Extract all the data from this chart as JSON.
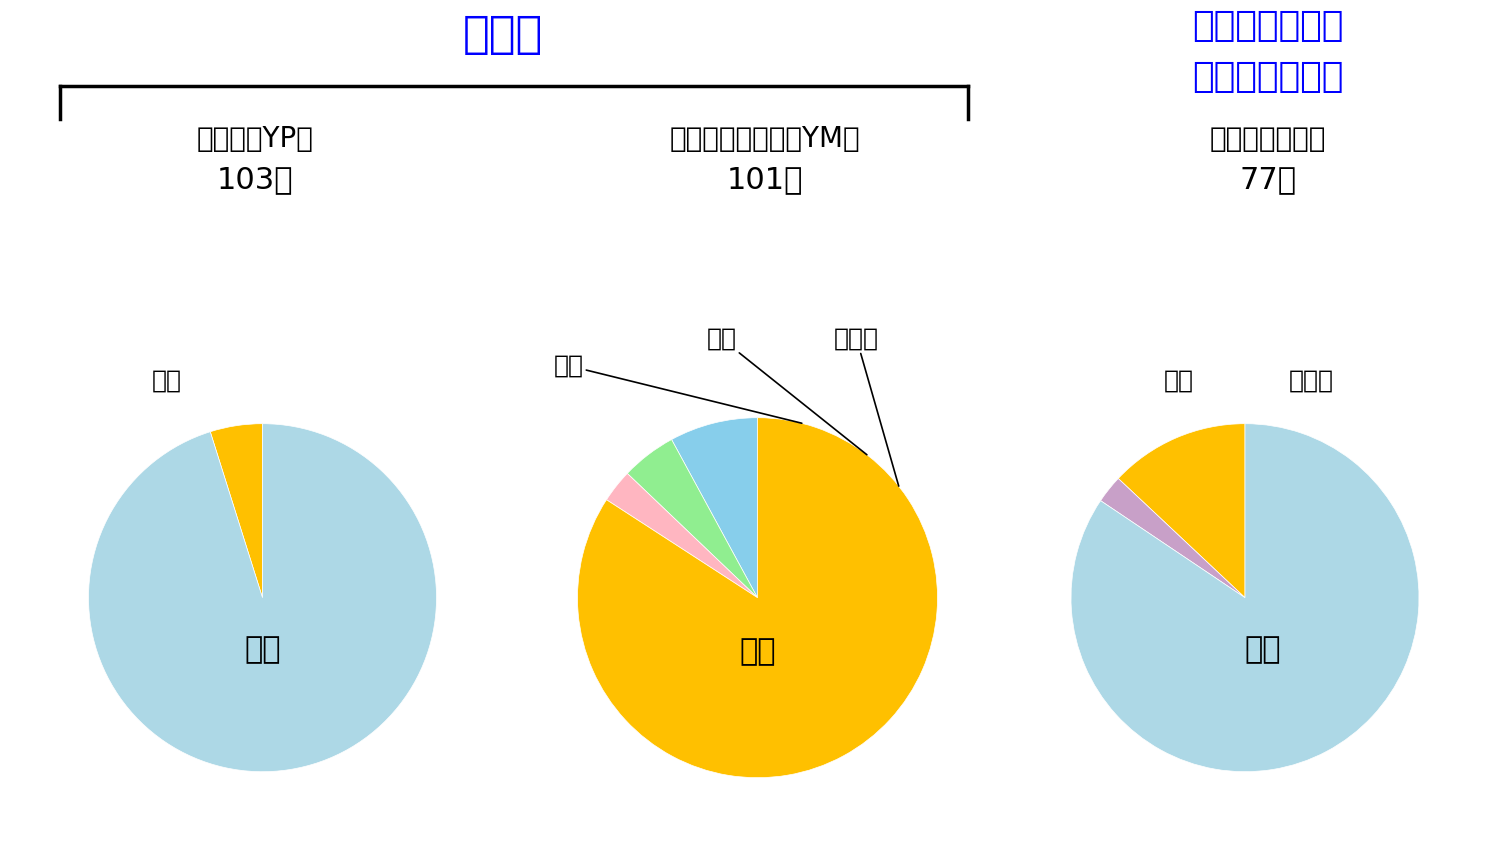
{
  "title_yakugakubu": "薬学部",
  "title_daigakuin_line1": "大学院修士課程",
  "title_daigakuin_line2": "（薬学研究科）",
  "title_color_blue": "#0000FF",
  "chart1_name_line1": "薬学科（YP）",
  "chart1_name_line2": "103人",
  "chart2_name_line1": "生命創薬科学科（YM）",
  "chart2_name_line2": "101人",
  "chart3_name_line1": "（薬科学専攻）",
  "chart3_name_line2": "77人",
  "chart1_labels": [
    "進学",
    "就職"
  ],
  "chart1_values": [
    5,
    98
  ],
  "chart1_colors": [
    "#FFC000",
    "#ADD8E6"
  ],
  "chart2_labels": [
    "就職",
    "未定",
    "その他",
    "進学"
  ],
  "chart2_values": [
    8,
    5,
    3,
    85
  ],
  "chart2_colors": [
    "#87CEEB",
    "#90EE90",
    "#FFB6C1",
    "#FFC000"
  ],
  "chart3_labels": [
    "進学",
    "その他",
    "就職"
  ],
  "chart3_values": [
    10,
    2,
    65
  ],
  "chart3_colors": [
    "#FFC000",
    "#C8A0C8",
    "#ADD8E6"
  ],
  "label_fontsize": 18,
  "title_fontsize": 32,
  "daigakuin_fontsize": 26,
  "name_fontsize": 20,
  "count_fontsize": 22,
  "inside_fontsize": 22,
  "background_color": "#FFFFFF"
}
